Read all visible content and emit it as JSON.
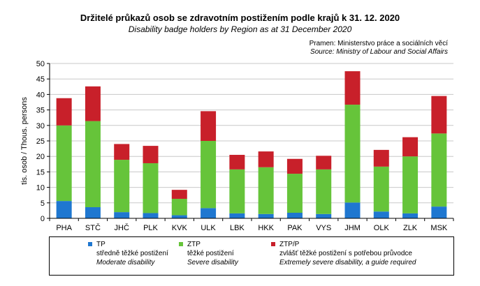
{
  "chart_data": {
    "type": "bar",
    "stacked": true,
    "title": "Držitelé průkazů osob se zdravotním postižením podle krajů k 31. 12. 2020",
    "subtitle": "Disability badge holders by Region as at 31 December 2020",
    "source_cz": "Pramen: Ministerstvo práce a sociálních věcí",
    "source_en": "Source: Ministry of Labour and Social Affairs",
    "ylabel": "tis. osob / Thous. persons",
    "ylim": [
      0,
      50
    ],
    "yticks": [
      0,
      5,
      10,
      15,
      20,
      25,
      30,
      35,
      40,
      45,
      50
    ],
    "grid": true,
    "categories": [
      "PHA",
      "STČ",
      "JHČ",
      "PLK",
      "KVK",
      "ULK",
      "LBK",
      "HKK",
      "PAK",
      "VYS",
      "JHM",
      "OLK",
      "ZLK",
      "MSK"
    ],
    "series": [
      {
        "name": "TP",
        "label_cz": "středně těžké postižení",
        "label_en": "Moderate disability",
        "color": "#1f77d0",
        "values": [
          5.6,
          3.6,
          2.0,
          1.7,
          1.0,
          3.3,
          1.6,
          1.4,
          1.8,
          1.4,
          5.1,
          2.2,
          1.6,
          3.8
        ]
      },
      {
        "name": "ZTP",
        "label_cz": "těžké postižení",
        "label_en": "Severe disability",
        "color": "#66c43a",
        "values": [
          24.4,
          27.8,
          16.9,
          16.1,
          5.3,
          21.7,
          14.2,
          15.1,
          12.6,
          14.4,
          31.6,
          14.5,
          18.4,
          23.6
        ]
      },
      {
        "name": "ZTP/P",
        "label_cz": "zvlášť těžké postižení s potřebou průvodce",
        "label_en": "Extremely severe disability, a guide required",
        "color": "#c8202a",
        "values": [
          8.8,
          11.2,
          5.1,
          5.6,
          2.9,
          9.6,
          4.7,
          5.1,
          4.8,
          4.4,
          10.8,
          5.4,
          6.2,
          12.1
        ]
      }
    ]
  }
}
